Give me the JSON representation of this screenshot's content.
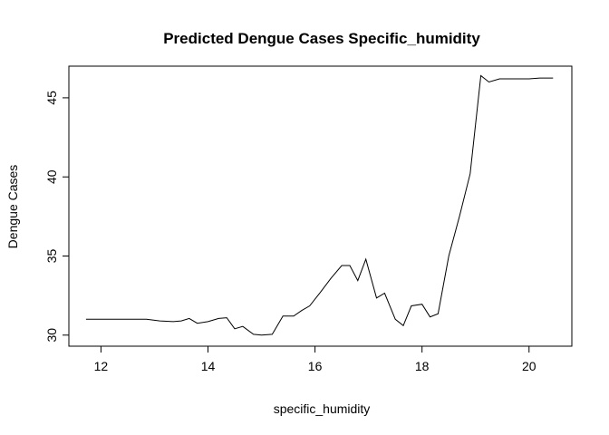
{
  "chart_data": {
    "type": "line",
    "title": "Predicted Dengue Cases Specific_humidity",
    "xlabel": "specific_humidity",
    "ylabel": "Dengue Cases",
    "xlim": [
      11.4,
      20.8
    ],
    "ylim": [
      29.3,
      47.0
    ],
    "xticks": [
      12,
      14,
      16,
      18,
      20
    ],
    "yticks": [
      30,
      35,
      40,
      45
    ],
    "grid": false,
    "series": [
      {
        "x": [
          11.72,
          12.0,
          12.3,
          12.6,
          12.85,
          13.1,
          13.35,
          13.5,
          13.65,
          13.8,
          14.0,
          14.2,
          14.35,
          14.5,
          14.65,
          14.85,
          15.0,
          15.2,
          15.4,
          15.6,
          15.75,
          15.9,
          16.1,
          16.3,
          16.5,
          16.65,
          16.8,
          16.95,
          17.15,
          17.3,
          17.5,
          17.65,
          17.8,
          18.0,
          18.15,
          18.3,
          18.5,
          18.7,
          18.9,
          19.1,
          19.25,
          19.45,
          19.7,
          20.0,
          20.2,
          20.45
        ],
        "y": [
          31.0,
          31.0,
          31.0,
          31.0,
          31.0,
          30.9,
          30.85,
          30.9,
          31.05,
          30.75,
          30.85,
          31.05,
          31.1,
          30.4,
          30.55,
          30.05,
          30.0,
          30.05,
          31.2,
          31.2,
          31.55,
          31.85,
          32.7,
          33.6,
          34.4,
          34.4,
          33.45,
          34.8,
          32.35,
          32.65,
          31.0,
          30.6,
          31.85,
          31.95,
          31.15,
          31.35,
          35.0,
          37.5,
          40.2,
          46.4,
          46.0,
          46.2,
          46.2,
          46.2,
          46.25,
          46.25
        ]
      }
    ]
  }
}
